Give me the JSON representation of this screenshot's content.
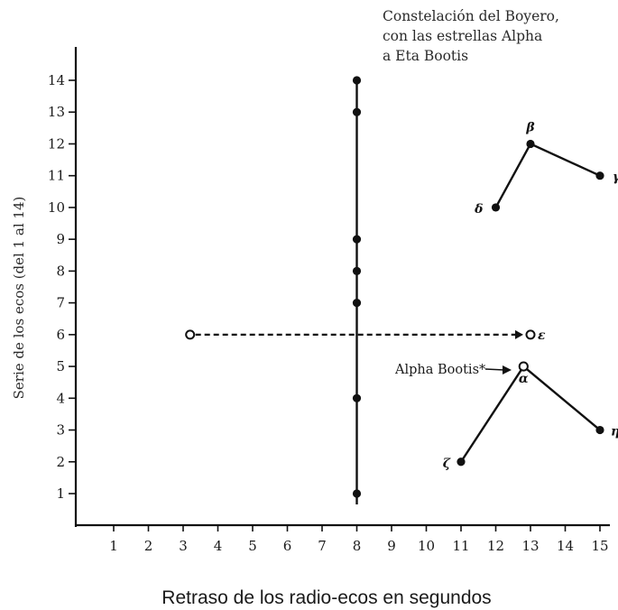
{
  "chart_data": {
    "type": "scatter",
    "title_lines": [
      "Constelación del Boyero,",
      "con las estrellas Alpha",
      "a Eta Bootis"
    ],
    "xlabel": "Retraso de los radio-ecos en segundos",
    "ylabel": "Serie de los ecos (del 1 al 14)",
    "x_ticks": [
      1,
      2,
      3,
      4,
      5,
      6,
      7,
      8,
      9,
      10,
      11,
      12,
      13,
      14,
      15
    ],
    "x_tick_labels": [
      "1",
      "2",
      "3",
      "4",
      "5",
      "6",
      "7",
      "8",
      "9",
      "10",
      "11",
      "12",
      "13",
      "14",
      "15"
    ],
    "y_ticks": [
      1,
      2,
      3,
      4,
      5,
      6,
      7,
      8,
      9,
      10,
      11,
      12,
      13,
      14
    ],
    "y_tick_labels": [
      "1",
      "2",
      "3",
      "4",
      "5",
      "6",
      "7",
      "8",
      "9",
      "10",
      "11",
      "12",
      "13",
      "14"
    ],
    "xlim": [
      0,
      15.5
    ],
    "ylim": [
      0,
      15
    ],
    "grid": false,
    "echo_series": {
      "x": [
        8,
        8,
        8,
        8,
        8,
        8,
        8
      ],
      "y": [
        1,
        4,
        7,
        8,
        9,
        13,
        14
      ]
    },
    "constellation_upper": {
      "points": [
        {
          "x": 12,
          "y": 10,
          "label": "δ"
        },
        {
          "x": 13,
          "y": 12,
          "label": "β"
        },
        {
          "x": 15,
          "y": 11,
          "label": "γ"
        }
      ]
    },
    "constellation_lower": {
      "points": [
        {
          "x": 11,
          "y": 2,
          "label": "ζ"
        },
        {
          "x": 12.8,
          "y": 5,
          "label": "α"
        },
        {
          "x": 15,
          "y": 3,
          "label": "η"
        }
      ]
    },
    "epsilon_shift": {
      "from": {
        "x": 3.2,
        "y": 6
      },
      "to": {
        "x": 13,
        "y": 6,
        "label": "ε"
      }
    },
    "annotation": "Alpha Bootis*"
  }
}
